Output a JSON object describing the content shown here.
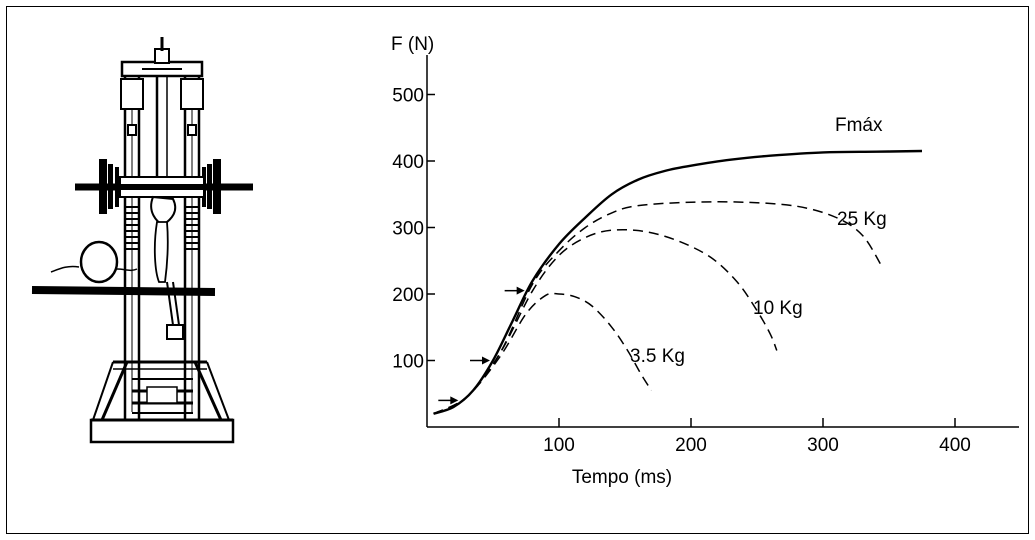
{
  "chart_data": {
    "type": "line",
    "y_axis_label": "F (N)",
    "x_axis_label": "Tempo (ms)",
    "x_ticks": [
      100,
      200,
      300,
      400
    ],
    "y_ticks": [
      100,
      200,
      300,
      400,
      500
    ],
    "xlim": [
      0,
      450
    ],
    "ylim": [
      0,
      550
    ],
    "grid": false,
    "series": [
      {
        "name": "Fmáx",
        "style": "solid",
        "points": [
          [
            5,
            20
          ],
          [
            20,
            30
          ],
          [
            35,
            55
          ],
          [
            50,
            100
          ],
          [
            65,
            160
          ],
          [
            80,
            220
          ],
          [
            100,
            275
          ],
          [
            120,
            315
          ],
          [
            140,
            350
          ],
          [
            160,
            372
          ],
          [
            180,
            385
          ],
          [
            200,
            393
          ],
          [
            230,
            402
          ],
          [
            260,
            408
          ],
          [
            300,
            413
          ],
          [
            340,
            414
          ],
          [
            375,
            415
          ]
        ]
      },
      {
        "name": "25 Kg",
        "style": "dashed",
        "points": [
          [
            5,
            20
          ],
          [
            30,
            45
          ],
          [
            55,
            110
          ],
          [
            80,
            215
          ],
          [
            100,
            265
          ],
          [
            120,
            300
          ],
          [
            140,
            322
          ],
          [
            160,
            333
          ],
          [
            200,
            338
          ],
          [
            240,
            338
          ],
          [
            280,
            332
          ],
          [
            310,
            315
          ],
          [
            330,
            288
          ],
          [
            345,
            240
          ]
        ]
      },
      {
        "name": "10 Kg",
        "style": "dashed",
        "points": [
          [
            5,
            20
          ],
          [
            30,
            45
          ],
          [
            55,
            110
          ],
          [
            80,
            205
          ],
          [
            100,
            258
          ],
          [
            120,
            285
          ],
          [
            140,
            296
          ],
          [
            165,
            294
          ],
          [
            190,
            280
          ],
          [
            215,
            255
          ],
          [
            235,
            218
          ],
          [
            250,
            175
          ],
          [
            260,
            140
          ],
          [
            265,
            115
          ]
        ]
      },
      {
        "name": "3.5 Kg",
        "style": "dashed",
        "points": [
          [
            5,
            20
          ],
          [
            30,
            45
          ],
          [
            55,
            105
          ],
          [
            75,
            170
          ],
          [
            90,
            198
          ],
          [
            100,
            200
          ],
          [
            112,
            196
          ],
          [
            125,
            182
          ],
          [
            140,
            150
          ],
          [
            152,
            115
          ],
          [
            162,
            80
          ],
          [
            170,
            55
          ]
        ]
      }
    ],
    "arrow_markers_y": [
      40,
      100,
      205
    ],
    "colors": {
      "line": "#000000",
      "background": "#ffffff"
    }
  },
  "illustration": {
    "icon": "leg-press-dynamometer-icon"
  }
}
